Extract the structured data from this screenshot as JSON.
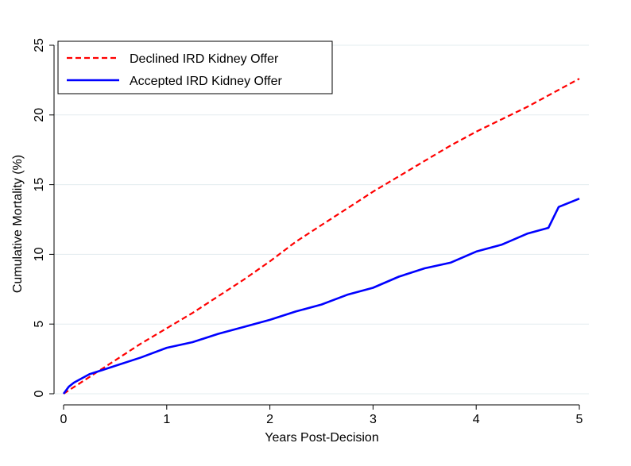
{
  "chart_data": {
    "type": "line",
    "xlabel": "Years Post-Decision",
    "ylabel": "Cumulative Mortality (%)",
    "xlim": [
      0,
      5
    ],
    "ylim": [
      0,
      25
    ],
    "xticks": [
      "0",
      "1",
      "2",
      "3",
      "4",
      "5"
    ],
    "yticks": [
      "0",
      "5",
      "10",
      "15",
      "20",
      "25"
    ],
    "grid": "horizontal",
    "legend": "top-left",
    "series": [
      {
        "name": "Declined IRD Kidney Offer",
        "color": "#ff0000",
        "style": "dashed",
        "x": [
          0,
          0.25,
          0.5,
          0.75,
          1.0,
          1.25,
          1.5,
          1.75,
          2.0,
          2.25,
          2.5,
          2.75,
          3.0,
          3.25,
          3.5,
          3.75,
          4.0,
          4.25,
          4.5,
          4.75,
          5.0
        ],
        "values": [
          0,
          1.2,
          2.4,
          3.6,
          4.7,
          5.8,
          7.0,
          8.2,
          9.5,
          10.9,
          12.1,
          13.3,
          14.5,
          15.6,
          16.7,
          17.8,
          18.8,
          19.7,
          20.6,
          21.6,
          22.6
        ]
      },
      {
        "name": "Accepted IRD Kidney Offer",
        "color": "#0000ff",
        "style": "solid",
        "x": [
          0,
          0.05,
          0.1,
          0.25,
          0.5,
          0.75,
          1.0,
          1.25,
          1.5,
          1.75,
          2.0,
          2.25,
          2.5,
          2.75,
          3.0,
          3.25,
          3.5,
          3.75,
          4.0,
          4.25,
          4.5,
          4.7,
          4.8,
          5.0
        ],
        "values": [
          0,
          0.5,
          0.8,
          1.4,
          2.0,
          2.6,
          3.3,
          3.7,
          4.3,
          4.8,
          5.3,
          5.9,
          6.4,
          7.1,
          7.6,
          8.4,
          9.0,
          9.4,
          10.2,
          10.7,
          11.5,
          11.9,
          13.4,
          14.0
        ]
      }
    ]
  }
}
